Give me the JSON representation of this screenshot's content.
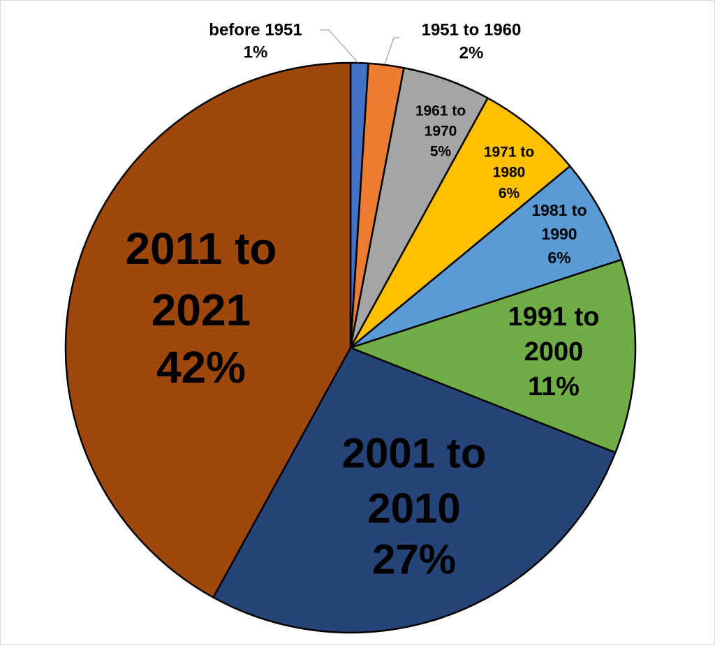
{
  "chart_data": {
    "type": "pie",
    "title": "",
    "start": "top, clockwise",
    "slices": [
      {
        "label": "before 1951",
        "value": 1,
        "pct_label": "1%",
        "color": "#4472C4"
      },
      {
        "label": "1951 to 1960",
        "value": 2,
        "pct_label": "2%",
        "color": "#ED7D31"
      },
      {
        "label": "1961 to 1970",
        "value": 5,
        "pct_label": "5%",
        "color": "#A5A5A5"
      },
      {
        "label": "1971 to 1980",
        "value": 6,
        "pct_label": "6%",
        "color": "#FFC000"
      },
      {
        "label": "1981 to 1990",
        "value": 6,
        "pct_label": "6%",
        "color": "#5B9BD5"
      },
      {
        "label": "1991 to 2000",
        "value": 11,
        "pct_label": "11%",
        "color": "#70AD47"
      },
      {
        "label": "2001 to 2010",
        "value": 27,
        "pct_label": "27%",
        "color": "#264478"
      },
      {
        "label": "2011 to 2021",
        "value": 42,
        "pct_label": "42%",
        "color": "#9E480E"
      }
    ]
  }
}
